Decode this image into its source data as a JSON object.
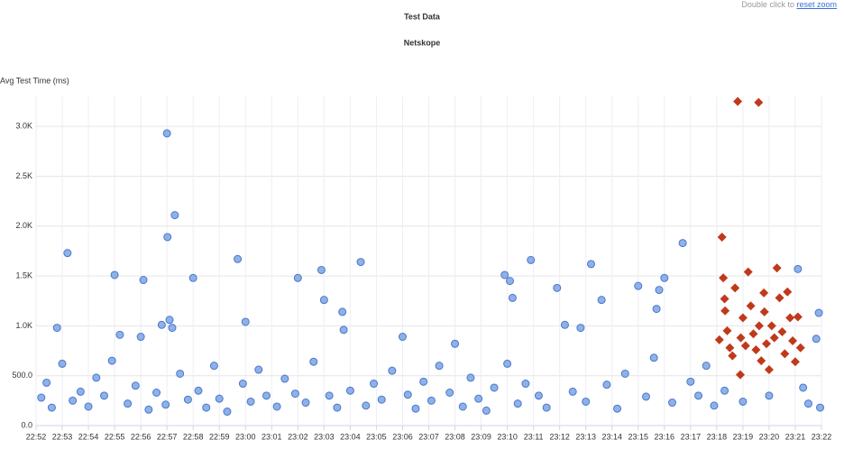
{
  "chart_data": {
    "type": "scatter",
    "title": "Test Data",
    "subtitle": "Netskope",
    "y_label": "Avg Test Time (ms)",
    "zoom_note": "Double click to",
    "zoom_link": "reset zoom",
    "grid": true,
    "xlim": [
      1372,
      1402
    ],
    "xticks": [
      {
        "value": 1372,
        "label": "22:52"
      },
      {
        "value": 1373,
        "label": "22:53"
      },
      {
        "value": 1374,
        "label": "22:54"
      },
      {
        "value": 1375,
        "label": "22:55"
      },
      {
        "value": 1376,
        "label": "22:56"
      },
      {
        "value": 1377,
        "label": "22:57"
      },
      {
        "value": 1378,
        "label": "22:58"
      },
      {
        "value": 1379,
        "label": "22:59"
      },
      {
        "value": 1380,
        "label": "23:00"
      },
      {
        "value": 1381,
        "label": "23:01"
      },
      {
        "value": 1382,
        "label": "23:02"
      },
      {
        "value": 1383,
        "label": "23:03"
      },
      {
        "value": 1384,
        "label": "23:04"
      },
      {
        "value": 1385,
        "label": "23:05"
      },
      {
        "value": 1386,
        "label": "23:06"
      },
      {
        "value": 1387,
        "label": "23:07"
      },
      {
        "value": 1388,
        "label": "23:08"
      },
      {
        "value": 1389,
        "label": "23:09"
      },
      {
        "value": 1390,
        "label": "23:10"
      },
      {
        "value": 1391,
        "label": "23:11"
      },
      {
        "value": 1392,
        "label": "23:12"
      },
      {
        "value": 1393,
        "label": "23:13"
      },
      {
        "value": 1394,
        "label": "23:14"
      },
      {
        "value": 1395,
        "label": "23:15"
      },
      {
        "value": 1396,
        "label": "23:16"
      },
      {
        "value": 1397,
        "label": "23:17"
      },
      {
        "value": 1398,
        "label": "23:18"
      },
      {
        "value": 1399,
        "label": "23:19"
      },
      {
        "value": 1400,
        "label": "23:20"
      },
      {
        "value": 1401,
        "label": "23:21"
      },
      {
        "value": 1402,
        "label": "23:22"
      }
    ],
    "ylim": [
      0,
      3300
    ],
    "yticks": [
      {
        "value": 0,
        "label": "0.0"
      },
      {
        "value": 500,
        "label": "500.0"
      },
      {
        "value": 1000,
        "label": "1.0K"
      },
      {
        "value": 1500,
        "label": "1.5K"
      },
      {
        "value": 2000,
        "label": "2.0K"
      },
      {
        "value": 2500,
        "label": "2.5K"
      },
      {
        "value": 3000,
        "label": "3.0K"
      }
    ],
    "series": [
      {
        "color": "#7aa3e5",
        "marker": "circle",
        "x": [
          1372.2,
          1372.4,
          1372.6,
          1372.8,
          1373.0,
          1373.2,
          1373.4,
          1373.7,
          1374.0,
          1374.3,
          1374.6,
          1374.9,
          1375.0,
          1375.2,
          1375.5,
          1375.8,
          1376.0,
          1376.1,
          1376.3,
          1376.6,
          1376.8,
          1377.0,
          1377.02,
          1377.1,
          1377.2,
          1377.3,
          1376.95,
          1377.5,
          1377.8,
          1378.0,
          1378.2,
          1378.5,
          1378.8,
          1379.0,
          1379.3,
          1379.7,
          1379.9,
          1380.0,
          1380.2,
          1380.5,
          1380.8,
          1381.2,
          1381.5,
          1381.9,
          1382.0,
          1382.3,
          1382.6,
          1382.9,
          1383.0,
          1383.2,
          1383.5,
          1383.7,
          1383.75,
          1384.0,
          1384.4,
          1384.6,
          1384.9,
          1385.2,
          1385.6,
          1386.0,
          1386.2,
          1386.5,
          1386.8,
          1387.1,
          1387.4,
          1387.8,
          1388.0,
          1388.3,
          1388.6,
          1388.9,
          1389.2,
          1389.5,
          1389.9,
          1390.0,
          1390.1,
          1390.2,
          1390.4,
          1390.7,
          1390.9,
          1391.2,
          1391.5,
          1391.9,
          1392.2,
          1392.5,
          1392.8,
          1393.0,
          1393.2,
          1393.6,
          1393.8,
          1394.2,
          1394.5,
          1395.0,
          1395.3,
          1395.6,
          1395.8,
          1395.7,
          1396.0,
          1396.3,
          1396.7,
          1397.0,
          1397.3,
          1397.6,
          1397.9,
          1398.3,
          1399.0,
          1400.0,
          1401.1,
          1401.3,
          1401.5,
          1401.8,
          1401.9,
          1401.95
        ],
        "values": [
          280,
          430,
          180,
          980,
          620,
          1730,
          250,
          340,
          190,
          480,
          300,
          650,
          1510,
          910,
          220,
          400,
          890,
          1460,
          160,
          330,
          1010,
          2930,
          1890,
          1060,
          980,
          2110,
          210,
          520,
          260,
          1480,
          350,
          180,
          600,
          270,
          140,
          1670,
          420,
          1040,
          240,
          560,
          300,
          190,
          470,
          320,
          1480,
          230,
          640,
          1560,
          1260,
          300,
          180,
          1140,
          960,
          350,
          1640,
          200,
          420,
          260,
          550,
          890,
          310,
          170,
          440,
          250,
          600,
          330,
          820,
          190,
          480,
          270,
          150,
          380,
          1510,
          620,
          1450,
          1280,
          220,
          420,
          1660,
          300,
          180,
          1380,
          1010,
          340,
          980,
          240,
          1620,
          1260,
          410,
          170,
          520,
          1400,
          290,
          680,
          1360,
          1170,
          1480,
          230,
          1830,
          440,
          300,
          600,
          200,
          350,
          240,
          300,
          1570,
          380,
          220,
          870,
          1130,
          180
        ]
      },
      {
        "color": "#c0391b",
        "marker": "diamond",
        "x": [
          1398.1,
          1398.2,
          1398.25,
          1398.3,
          1398.32,
          1398.4,
          1398.5,
          1398.6,
          1398.7,
          1398.8,
          1398.9,
          1398.92,
          1399.0,
          1399.1,
          1399.2,
          1399.3,
          1399.4,
          1399.5,
          1399.6,
          1399.62,
          1399.7,
          1399.8,
          1399.82,
          1399.9,
          1400.0,
          1400.1,
          1400.2,
          1400.3,
          1400.4,
          1400.5,
          1400.6,
          1400.7,
          1400.8,
          1400.9,
          1401.0,
          1401.1,
          1401.2
        ],
        "values": [
          860,
          1890,
          1480,
          1270,
          1150,
          950,
          780,
          700,
          1380,
          3250,
          510,
          880,
          1080,
          800,
          1540,
          1200,
          920,
          760,
          3240,
          1000,
          650,
          1330,
          1140,
          820,
          560,
          1000,
          880,
          1580,
          1280,
          940,
          720,
          1340,
          1080,
          850,
          640,
          1090,
          780
        ]
      }
    ]
  }
}
